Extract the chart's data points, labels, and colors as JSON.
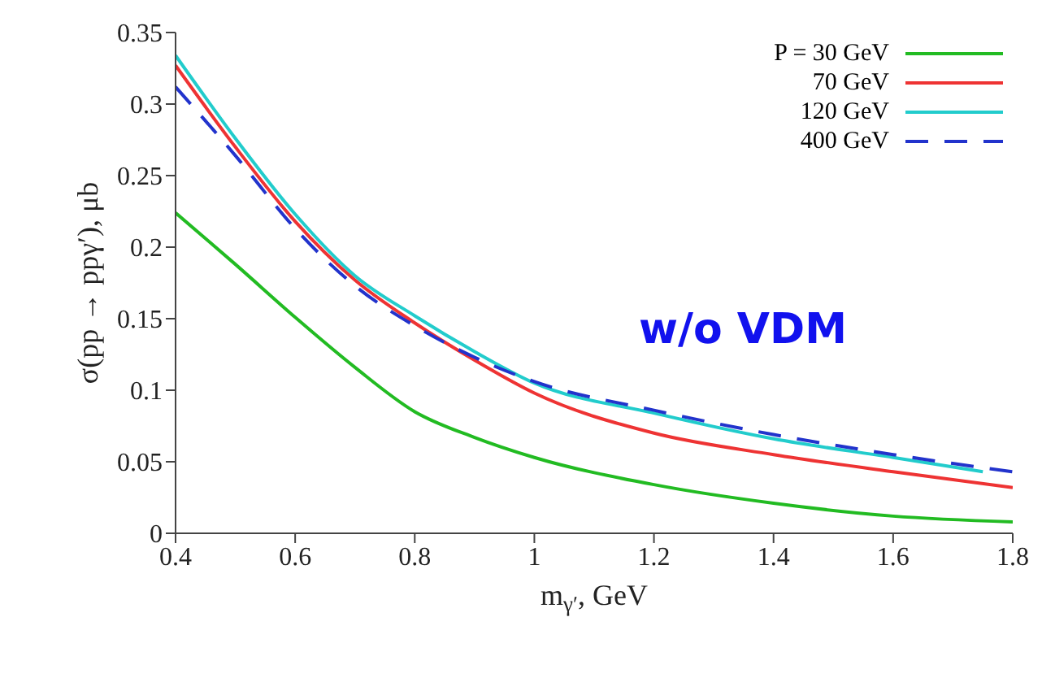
{
  "chart_data": {
    "type": "line",
    "xlabel": "m$_{γ′}$, GeV",
    "ylabel": "σ(pp → ppγ′), μb",
    "annotations": [
      "w/o VDM"
    ],
    "xlim": [
      0.4,
      1.8
    ],
    "xticks": [
      0.4,
      0.6,
      0.8,
      1,
      1.2,
      1.4,
      1.6,
      1.8
    ],
    "ylim": [
      0,
      0.35
    ],
    "yticks": [
      0,
      0.05,
      0.1,
      0.15,
      0.2,
      0.25,
      0.3,
      0.35
    ],
    "grid": false,
    "legend": "top right",
    "marker": "none",
    "series": [
      {
        "name": "P = 30 GeV",
        "color": "#22bb22",
        "line_style": "solid",
        "x": [
          0.4,
          0.5,
          0.6,
          0.7,
          0.8,
          0.9,
          1,
          1.2,
          1.4,
          1.6,
          1.8
        ],
        "values": [
          0.224,
          0.188,
          0.151,
          0.116,
          0.085,
          0.067,
          0.053,
          0.034,
          0.021,
          0.012,
          0.008
        ]
      },
      {
        "name": "70 GeV",
        "color": "#ee3333",
        "line_style": "solid",
        "x": [
          0.4,
          0.5,
          0.6,
          0.7,
          0.8,
          0.9,
          1,
          1.2,
          1.4,
          1.6,
          1.8
        ],
        "values": [
          0.327,
          0.27,
          0.218,
          0.177,
          0.147,
          0.121,
          0.098,
          0.07,
          0.055,
          0.043,
          0.032
        ]
      },
      {
        "name": "120 GeV",
        "color": "#22cccc",
        "line_style": "solid",
        "x": [
          0.4,
          0.5,
          0.6,
          0.7,
          0.8,
          0.9,
          1,
          1.2,
          1.4,
          1.6,
          1.75
        ],
        "values": [
          0.334,
          0.276,
          0.223,
          0.18,
          0.152,
          0.127,
          0.105,
          0.084,
          0.066,
          0.053,
          0.043
        ]
      },
      {
        "name": "400 GeV",
        "color": "#2233cc",
        "line_style": "dashed",
        "x": [
          0.4,
          0.5,
          0.6,
          0.7,
          0.8,
          0.9,
          1,
          1.2,
          1.4,
          1.6,
          1.8
        ],
        "values": [
          0.312,
          0.264,
          0.213,
          0.173,
          0.145,
          0.123,
          0.106,
          0.086,
          0.069,
          0.055,
          0.043
        ]
      }
    ]
  }
}
